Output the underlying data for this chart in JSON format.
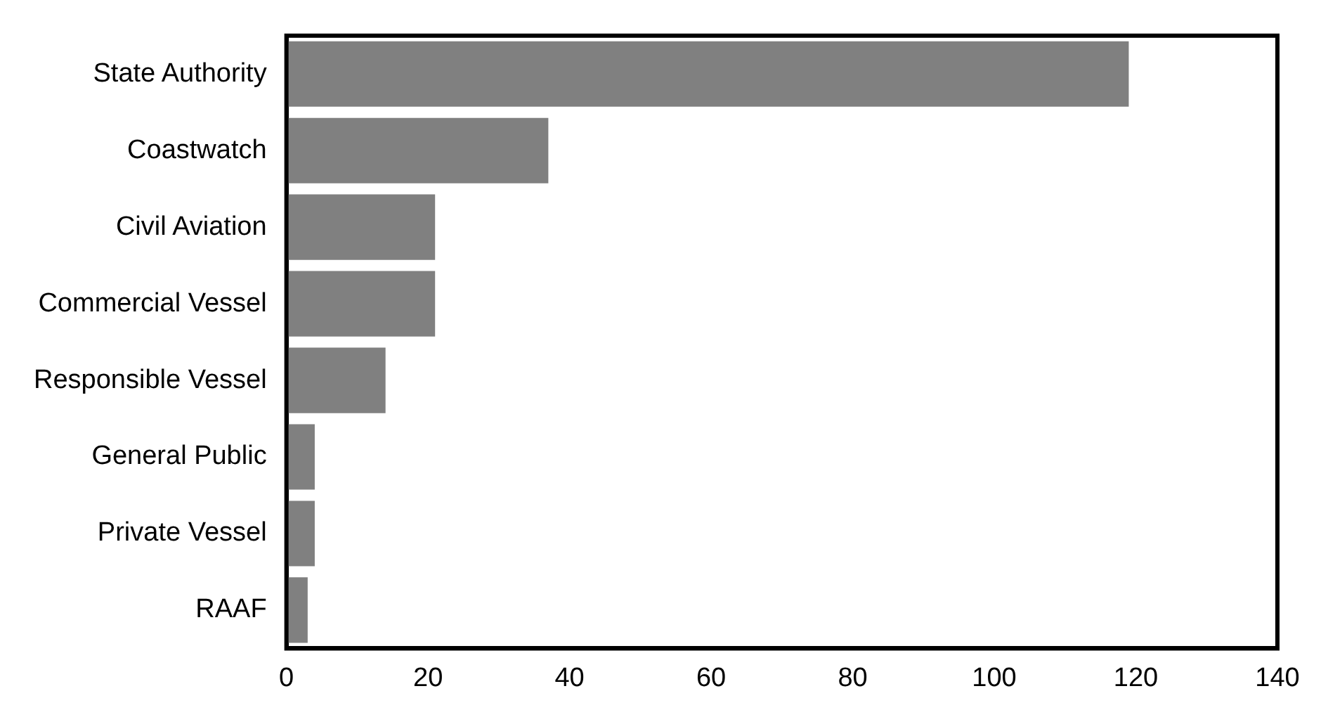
{
  "chart_data": {
    "type": "bar",
    "orientation": "horizontal",
    "categories": [
      "State Authority",
      "Coastwatch",
      "Civil Aviation",
      "Commercial Vessel",
      "Responsible Vessel",
      "General Public",
      "Private Vessel",
      "RAAF"
    ],
    "values": [
      119,
      37,
      21,
      21,
      14,
      4,
      4,
      3
    ],
    "color": "#808080",
    "xlim": [
      0,
      140
    ],
    "xticks": [
      0,
      20,
      40,
      60,
      80,
      100,
      120,
      140
    ],
    "grid": false
  }
}
